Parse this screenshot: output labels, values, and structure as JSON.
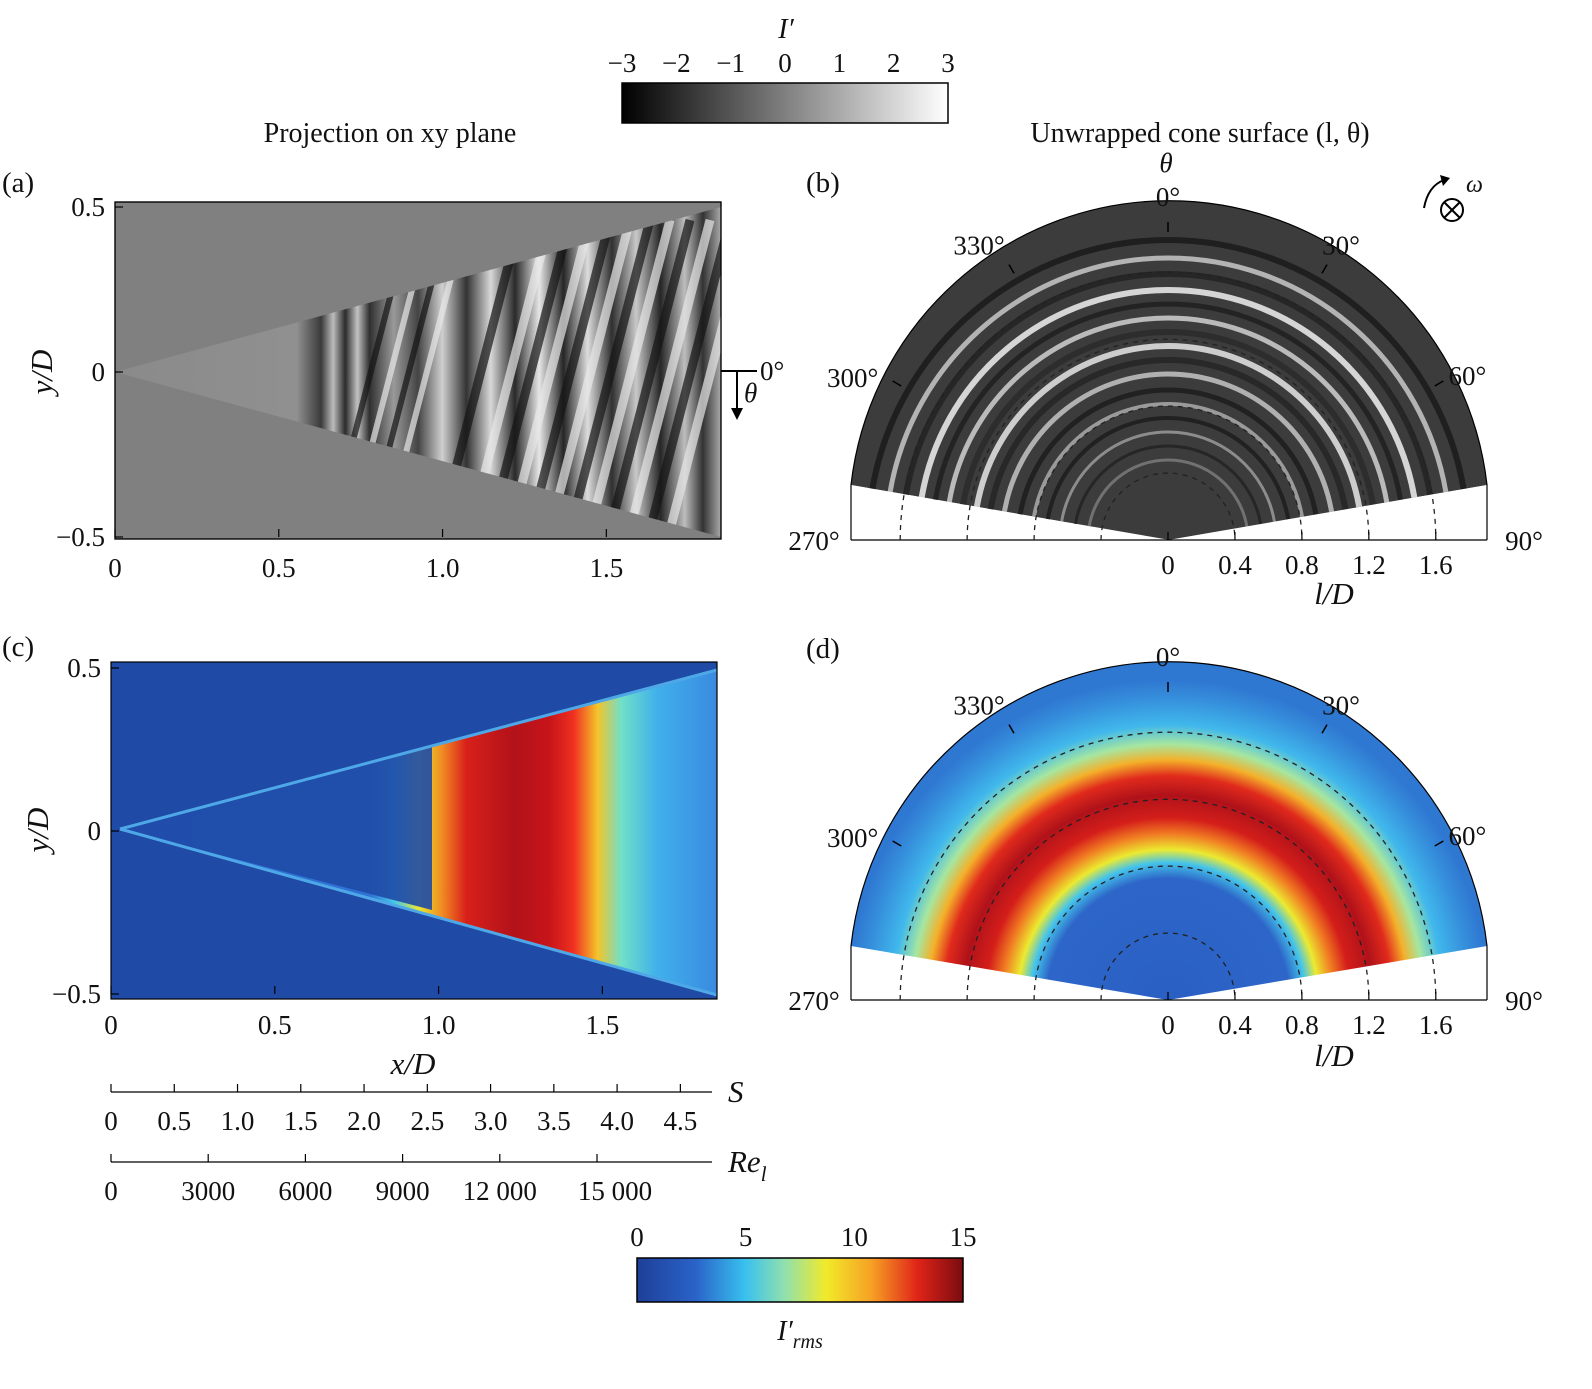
{
  "chart_data": [
    {
      "panel": "(a)",
      "type": "heatmap",
      "title": "Projection on xy plane",
      "xlabel": "",
      "ylabel": "y/D",
      "x_ticks": [
        "0",
        "0.5",
        "1.0",
        "1.5"
      ],
      "x_tick_values": [
        0,
        0.5,
        1.0,
        1.5
      ],
      "y_ticks": [
        "0.5",
        "0",
        "−0.5"
      ],
      "y_tick_values": [
        0.5,
        0,
        -0.5
      ],
      "xlim": [
        0,
        1.85
      ],
      "ylim": [
        -0.5,
        0.5
      ],
      "colormap": "gray",
      "angle_marker": "0°",
      "angle_symbol": "θ"
    },
    {
      "panel": "(b)",
      "type": "heatmap",
      "title": "Unwrapped cone surface (l, θ)",
      "theta_label": "θ",
      "rotation_label": "ω",
      "angle_ticks": [
        "0°",
        "30°",
        "60°",
        "90°",
        "270°",
        "300°",
        "330°"
      ],
      "angle_values": [
        0,
        30,
        60,
        90,
        270,
        300,
        330
      ],
      "r_ticks": [
        "0",
        "0.4",
        "0.8",
        "1.2",
        "1.6"
      ],
      "r_tick_values": [
        0,
        0.4,
        0.8,
        1.2,
        1.6
      ],
      "rlabel": "l/D",
      "colormap": "gray"
    },
    {
      "panel": "(c)",
      "type": "heatmap",
      "xlabel": "x/D",
      "ylabel": "y/D",
      "x_ticks": [
        "0",
        "0.5",
        "1.0",
        "1.5"
      ],
      "x_tick_values": [
        0,
        0.5,
        1.0,
        1.5
      ],
      "y_ticks": [
        "0.5",
        "0",
        "−0.5"
      ],
      "y_tick_values": [
        0.5,
        0,
        -0.5
      ],
      "xlim": [
        0,
        1.85
      ],
      "ylim": [
        -0.5,
        0.5
      ],
      "colormap": "jet",
      "secondary_axes": [
        {
          "label": "S",
          "ticks": [
            "0",
            "0.5",
            "1.0",
            "1.5",
            "2.0",
            "2.5",
            "3.0",
            "3.5",
            "4.0",
            "4.5"
          ],
          "values": [
            0,
            0.5,
            1.0,
            1.5,
            2.0,
            2.5,
            3.0,
            3.5,
            4.0,
            4.5
          ]
        },
        {
          "label": "Re",
          "label_sub": "l",
          "ticks": [
            "0",
            "3000",
            "6000",
            "9000",
            "12 000",
            "15 000"
          ],
          "values": [
            0,
            3000,
            6000,
            9000,
            12000,
            15000
          ]
        }
      ]
    },
    {
      "panel": "(d)",
      "type": "heatmap",
      "angle_ticks": [
        "0°",
        "30°",
        "60°",
        "90°",
        "270°",
        "300°",
        "330°"
      ],
      "angle_values": [
        0,
        30,
        60,
        90,
        270,
        300,
        330
      ],
      "r_ticks": [
        "0",
        "0.4",
        "0.8",
        "1.2",
        "1.6"
      ],
      "r_tick_values": [
        0,
        0.4,
        0.8,
        1.2,
        1.6
      ],
      "rlabel": "l/D",
      "colormap": "jet"
    }
  ],
  "colorbars": [
    {
      "label": "I′",
      "ticks": [
        "−3",
        "−2",
        "−1",
        "0",
        "1",
        "2",
        "3"
      ],
      "values": [
        -3,
        -2,
        -1,
        0,
        1,
        2,
        3
      ],
      "range": [
        -3,
        3
      ],
      "colormap": "gray"
    },
    {
      "label": "I′",
      "label_sub": "rms",
      "ticks": [
        "0",
        "5",
        "10",
        "15"
      ],
      "values": [
        0,
        5,
        10,
        15
      ],
      "range": [
        0,
        15
      ],
      "colormap": "jet"
    }
  ],
  "colors": {
    "jet_low": "#1e4aa8",
    "jet_mid": "#f0e020",
    "jet_high": "#8c0a0a",
    "plot_background_gray": "#808080"
  }
}
